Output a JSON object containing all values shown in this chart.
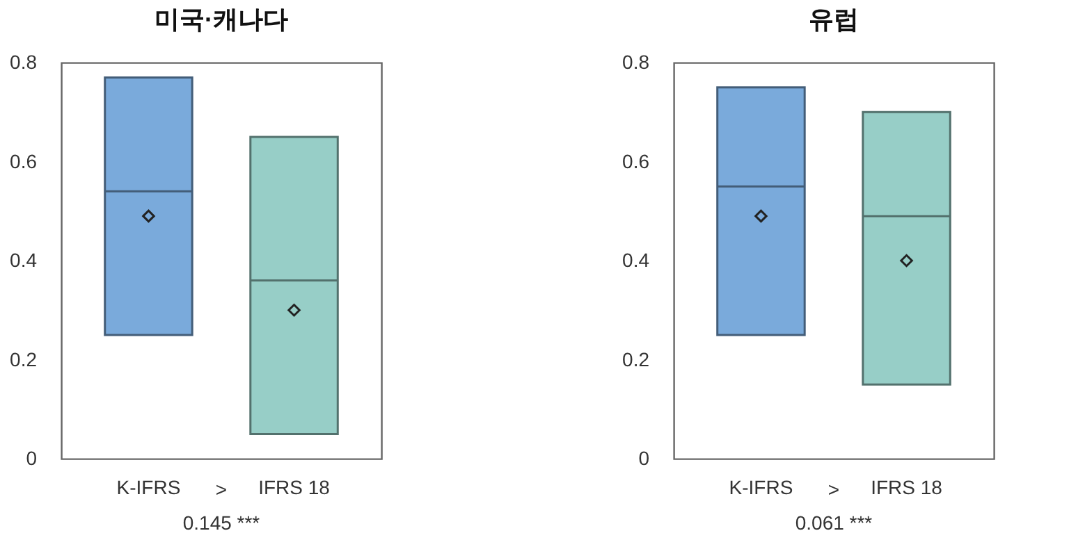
{
  "chart_data": [
    {
      "type": "box",
      "title": "미국·캐나다",
      "categories": [
        "K-IFRS",
        "IFRS 18"
      ],
      "boxes": [
        {
          "low": 0.25,
          "q1": 0.25,
          "median": 0.54,
          "q3": 0.77,
          "high": 0.77,
          "mean": 0.49
        },
        {
          "low": 0.05,
          "q1": 0.05,
          "median": 0.36,
          "q3": 0.65,
          "high": 0.65,
          "mean": 0.3
        }
      ],
      "colors": [
        "#7aaadb",
        "#97cec7"
      ],
      "ylim": [
        0,
        0.8
      ],
      "yticks": [
        0,
        0.2,
        0.4,
        0.6,
        0.8
      ],
      "grid": false,
      "marker": "diamond",
      "annotations": [
        ">",
        "0.145 ***"
      ]
    },
    {
      "type": "box",
      "title": "유럽",
      "categories": [
        "K-IFRS",
        "IFRS 18"
      ],
      "boxes": [
        {
          "low": 0.25,
          "q1": 0.25,
          "median": 0.55,
          "q3": 0.75,
          "high": 0.75,
          "mean": 0.49
        },
        {
          "low": 0.15,
          "q1": 0.15,
          "median": 0.49,
          "q3": 0.7,
          "high": 0.7,
          "mean": 0.4
        }
      ],
      "colors": [
        "#7aaadb",
        "#97cec7"
      ],
      "ylim": [
        0,
        0.8
      ],
      "yticks": [
        0,
        0.2,
        0.4,
        0.6,
        0.8
      ],
      "grid": false,
      "marker": "diamond",
      "annotations": [
        ">",
        "0.061 ***"
      ]
    }
  ]
}
